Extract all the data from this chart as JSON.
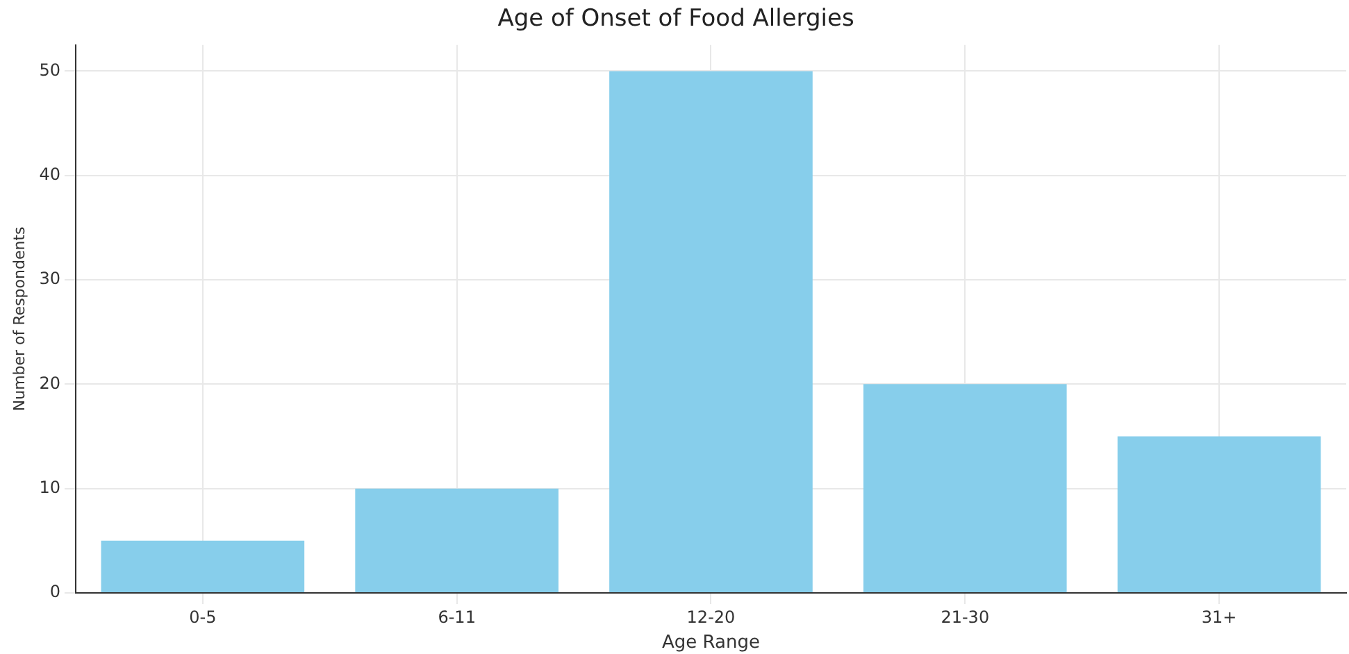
{
  "chart_data": {
    "type": "bar",
    "title": "Age of Onset of Food Allergies",
    "xlabel": "Age Range",
    "ylabel": "Number of Respondents",
    "categories": [
      "0-5",
      "6-11",
      "12-20",
      "21-30",
      "31+"
    ],
    "values": [
      5,
      10,
      50,
      20,
      15
    ],
    "color": "#87ceeb",
    "ylim": [
      0,
      52.5
    ],
    "yticks": [
      0,
      10,
      20,
      30,
      40,
      50
    ],
    "grid": true
  }
}
